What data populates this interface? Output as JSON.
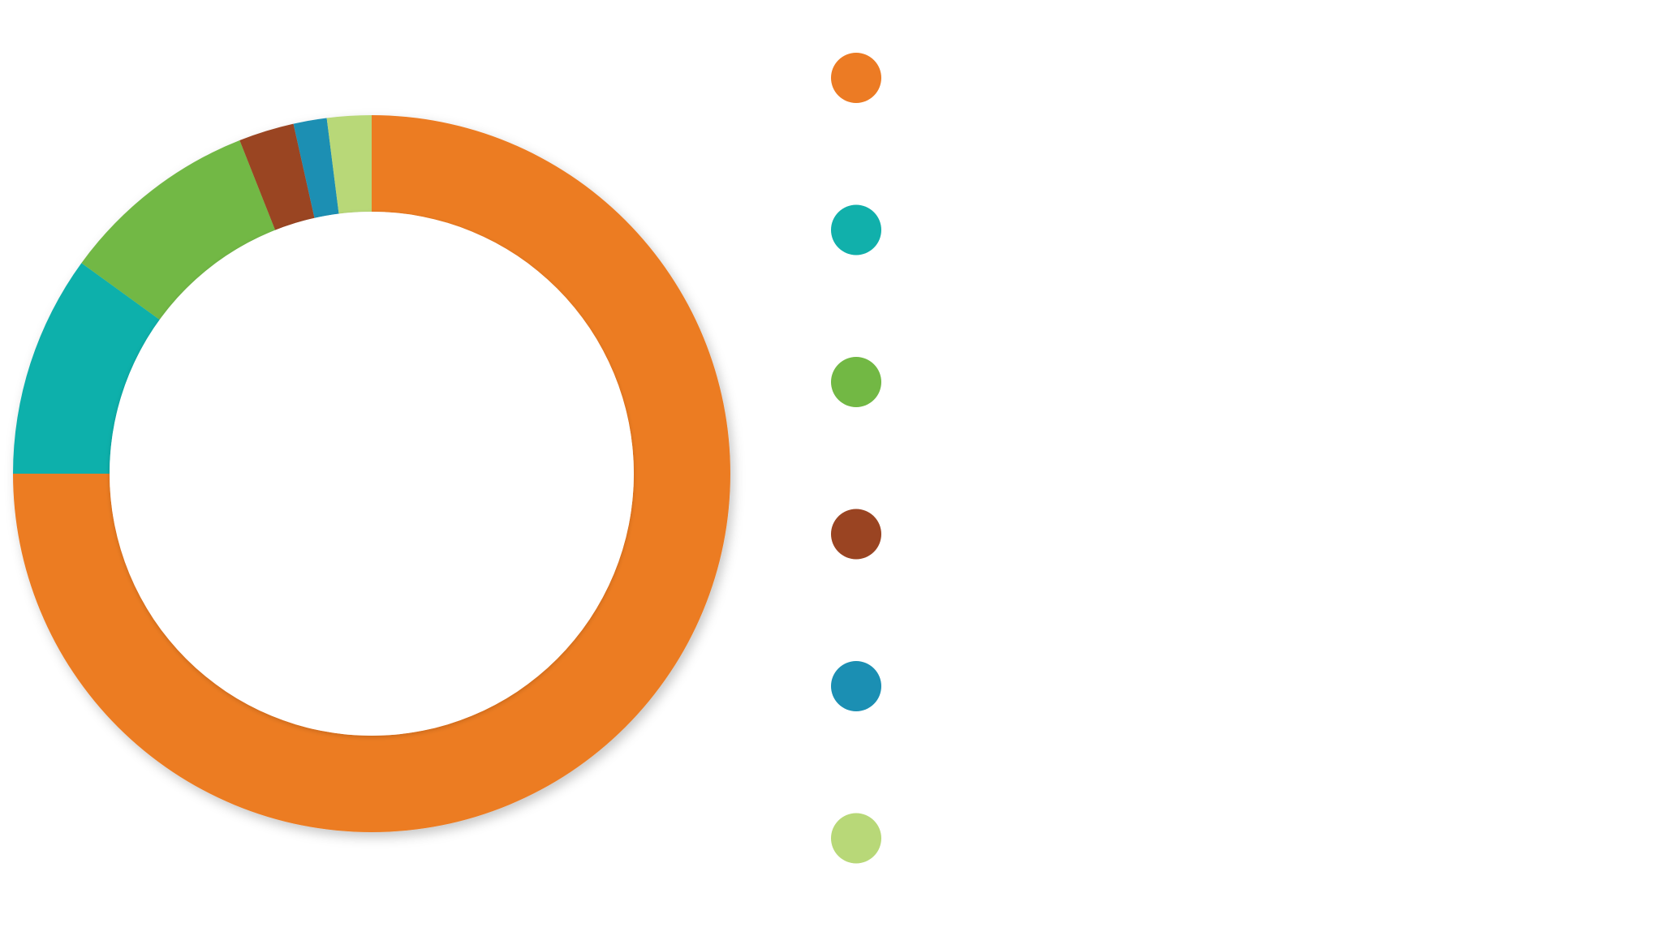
{
  "chart_data": {
    "type": "pie",
    "variant": "donut",
    "title": "",
    "legend_position": "right",
    "series": [
      {
        "value": 75.0,
        "color": "#ec7b24"
      },
      {
        "value": 10.0,
        "color": "#11b0ab"
      },
      {
        "value": 9.0,
        "color": "#72b844"
      },
      {
        "value": 2.5,
        "color": "#9a4422"
      },
      {
        "value": 1.5,
        "color": "#1b8fb3"
      },
      {
        "value": 2.0,
        "color": "#b8d878"
      }
    ]
  }
}
